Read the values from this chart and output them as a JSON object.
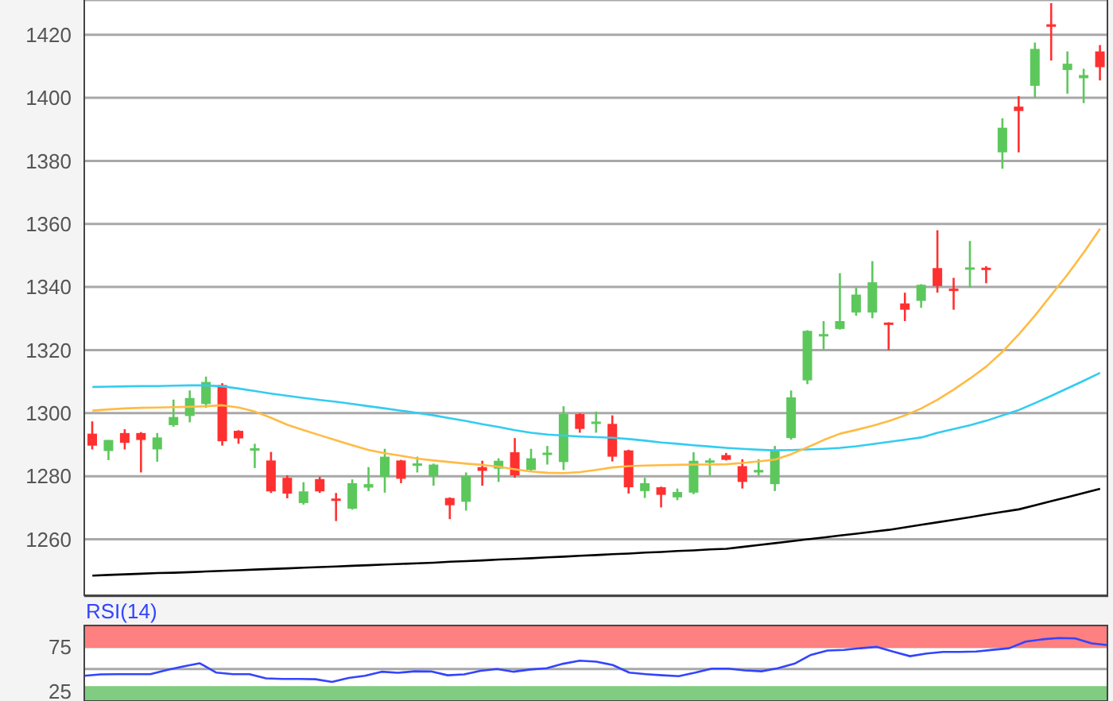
{
  "chart_data": [
    {
      "type": "candlestick",
      "categories": [
        null,
        null,
        null,
        null,
        null,
        null,
        null,
        null,
        null,
        null,
        null,
        null,
        null,
        null,
        null,
        null,
        null,
        null,
        null,
        null,
        null,
        null,
        null,
        null,
        null,
        null,
        null,
        null,
        null,
        null,
        null,
        null,
        null,
        null,
        null,
        null,
        null,
        null,
        null,
        null,
        null,
        null,
        null,
        null,
        null,
        null,
        null,
        null,
        null,
        null,
        null,
        null,
        null,
        null,
        null,
        null,
        null,
        null,
        null,
        null,
        null,
        null,
        null
      ],
      "ohlc": [
        [
          1293.5,
          1297.4,
          1288.5,
          1289.7
        ],
        [
          1288,
          1291.5,
          1285.1,
          1291.5
        ],
        [
          1293.7,
          1294.9,
          1288.5,
          1290.6
        ],
        [
          1293.7,
          1294,
          1281.2,
          1291.5
        ],
        [
          1288.5,
          1293.7,
          1284.6,
          1292.3
        ],
        [
          1296.2,
          1304.3,
          1295.7,
          1298.8
        ],
        [
          1299.1,
          1307.2,
          1297.1,
          1304.8
        ],
        [
          1302.9,
          1311.6,
          1301.7,
          1309.9
        ],
        [
          1308.9,
          1309.5,
          1289.7,
          1291.1
        ],
        [
          1294.4,
          1294.6,
          1290.3,
          1292
        ],
        [
          1288.3,
          1290.3,
          1282.6,
          1288.7
        ],
        [
          1285,
          1287.7,
          1274.7,
          1275.2
        ],
        [
          1279.5,
          1280.3,
          1273,
          1274.5
        ],
        [
          1271.5,
          1278.1,
          1271,
          1275.2
        ],
        [
          1279.1,
          1279.8,
          1274.7,
          1275.2
        ],
        [
          1272.8,
          1274.7,
          1265.8,
          1272.3
        ],
        [
          1269.7,
          1279,
          1269.4,
          1277.8
        ],
        [
          1276.4,
          1282.9,
          1275.3,
          1277.5
        ],
        [
          1279.8,
          1288.7,
          1274.8,
          1286.2
        ],
        [
          1285,
          1285.2,
          1277.8,
          1279.2
        ],
        [
          1283.5,
          1286.2,
          1281.2,
          1283.9
        ],
        [
          1280,
          1284,
          1277,
          1283.7
        ],
        [
          1273.1,
          1273.3,
          1266.4,
          1270.8
        ],
        [
          1271.9,
          1281.2,
          1269.1,
          1280
        ],
        [
          1282.9,
          1284.9,
          1277,
          1281.7
        ],
        [
          1282.4,
          1285.7,
          1278.2,
          1284.9
        ],
        [
          1287.6,
          1292.1,
          1279.5,
          1280.3
        ],
        [
          1282,
          1288.7,
          1281.7,
          1285.7
        ],
        [
          1286.9,
          1289.6,
          1283.7,
          1287.3
        ],
        [
          1284.5,
          1302.2,
          1282,
          1299.7
        ],
        [
          1299.7,
          1300,
          1293.8,
          1295
        ],
        [
          1296.6,
          1300.5,
          1293.8,
          1297.3
        ],
        [
          1296.6,
          1299.3,
          1284.7,
          1286.2
        ],
        [
          1288.2,
          1288.4,
          1274.5,
          1276.5
        ],
        [
          1275.3,
          1279.5,
          1273.1,
          1277.8
        ],
        [
          1276.5,
          1276.7,
          1270.1,
          1274.1
        ],
        [
          1273.3,
          1276.1,
          1272.4,
          1275
        ],
        [
          1274.8,
          1287.6,
          1274.3,
          1284.9
        ],
        [
          1284.4,
          1285.7,
          1280.3,
          1284.9
        ],
        [
          1286.7,
          1287.4,
          1285,
          1285.2
        ],
        [
          1283.2,
          1285.4,
          1276.1,
          1278.2
        ],
        [
          1281.2,
          1285.4,
          1280.3,
          1282
        ],
        [
          1277.5,
          1289.6,
          1275.3,
          1288.2
        ],
        [
          1292.1,
          1307.2,
          1291.6,
          1305
        ],
        [
          1310.4,
          1326.3,
          1309.2,
          1326.1
        ],
        [
          1324.4,
          1329.2,
          1320,
          1325
        ],
        [
          1326.7,
          1344.4,
          1326.5,
          1329.2
        ],
        [
          1331.9,
          1339.8,
          1330.9,
          1337.6
        ],
        [
          1331.9,
          1348.2,
          1330.1,
          1341.5
        ],
        [
          1328.6,
          1328.8,
          1320,
          1328.1
        ],
        [
          1334.8,
          1338.2,
          1329.2,
          1332.8
        ],
        [
          1335.6,
          1340.9,
          1333.4,
          1340.7
        ],
        [
          1346,
          1358,
          1338.2,
          1340.3
        ],
        [
          1339.2,
          1342.9,
          1332.8,
          1339
        ],
        [
          1345.7,
          1354.6,
          1339.8,
          1346
        ],
        [
          1346,
          1346.6,
          1341.2,
          1345.5
        ],
        [
          1382.7,
          1393.5,
          1377.5,
          1390.5
        ],
        [
          1397.2,
          1400.5,
          1382.7,
          1395.8
        ],
        [
          1403.8,
          1417.5,
          1400,
          1415.5
        ],
        [
          1423.3,
          1430,
          1411.8,
          1422.5
        ],
        [
          1408.8,
          1414.7,
          1401.3,
          1410.8
        ],
        [
          1406.2,
          1409.2,
          1398.3,
          1407.2
        ],
        [
          1414.7,
          1416.7,
          1405.5,
          1409.7
        ]
      ],
      "colors": [
        "#ff3030",
        "#5cc85c",
        "#ff3030",
        "#ff3030",
        "#5cc85c",
        "#5cc85c",
        "#5cc85c",
        "#5cc85c",
        "#ff3030",
        "#ff3030",
        "#5cc85c",
        "#ff3030",
        "#ff3030",
        "#5cc85c",
        "#ff3030",
        "#ff3030",
        "#5cc85c",
        "#5cc85c",
        "#5cc85c",
        "#ff3030",
        "#5cc85c",
        "#5cc85c",
        "#ff3030",
        "#5cc85c",
        "#ff3030",
        "#5cc85c",
        "#ff3030",
        "#5cc85c",
        "#5cc85c",
        "#5cc85c",
        "#ff3030",
        "#5cc85c",
        "#ff3030",
        "#ff3030",
        "#5cc85c",
        "#ff3030",
        "#5cc85c",
        "#5cc85c",
        "#5cc85c",
        "#ff3030",
        "#ff3030",
        "#5cc85c",
        "#5cc85c",
        "#5cc85c",
        "#5cc85c",
        "#5cc85c",
        "#5cc85c",
        "#5cc85c",
        "#5cc85c",
        "#ff3030",
        "#ff3030",
        "#5cc85c",
        "#ff3030",
        "#ff3030",
        "#5cc85c",
        "#ff3030",
        "#5cc85c",
        "#ff3030",
        "#5cc85c",
        "#ff3030",
        "#5cc85c",
        "#5cc85c",
        "#ff3030"
      ],
      "series": [
        {
          "type": "line",
          "color": "#000000",
          "values": [
            1248.5,
            1248.7,
            1248.9,
            1249.1,
            1249.3,
            1249.4,
            1249.6,
            1249.8,
            1250,
            1250.2,
            1250.4,
            1250.6,
            1250.8,
            1251,
            1251.2,
            1251.4,
            1251.6,
            1251.8,
            1252,
            1252.2,
            1252.4,
            1252.6,
            1252.9,
            1253.1,
            1253.3,
            1253.6,
            1253.8,
            1254,
            1254.3,
            1254.5,
            1254.8,
            1255,
            1255.3,
            1255.5,
            1255.8,
            1256,
            1256.3,
            1256.5,
            1256.8,
            1257,
            1257.6,
            1258.2,
            1258.8,
            1259.4,
            1260,
            1260.6,
            1261.2,
            1261.8,
            1262.4,
            1263,
            1263.8,
            1264.6,
            1265.4,
            1266.2,
            1267,
            1267.9,
            1268.7,
            1269.5,
            1270.8,
            1272.1,
            1273.4,
            1274.7,
            1276
          ]
        },
        {
          "type": "line",
          "color": "#33ccf0",
          "values": [
            1308.3,
            1308.4,
            1308.5,
            1308.6,
            1308.6,
            1308.7,
            1308.8,
            1308.8,
            1308.5,
            1307.8,
            1307,
            1306.2,
            1305.5,
            1304.8,
            1304.2,
            1303.6,
            1302.9,
            1302.2,
            1301.5,
            1300.8,
            1300.1,
            1299.3,
            1298.4,
            1297.5,
            1296.5,
            1295.6,
            1294.6,
            1293.8,
            1293.2,
            1292.9,
            1292.6,
            1292.4,
            1292.2,
            1291.8,
            1291.3,
            1290.7,
            1290.3,
            1289.8,
            1289.4,
            1289,
            1288.7,
            1288.4,
            1288.2,
            1288.3,
            1288.5,
            1288.7,
            1289,
            1289.5,
            1290.2,
            1290.9,
            1291.6,
            1292.3,
            1293.8,
            1295,
            1296.2,
            1297.6,
            1299.3,
            1301,
            1303.2,
            1305.5,
            1307.9,
            1310.3,
            1312.8
          ]
        },
        {
          "type": "line",
          "color": "#ffbb44",
          "values": [
            1300.8,
            1301.2,
            1301.5,
            1301.7,
            1301.8,
            1301.9,
            1302,
            1302.2,
            1302.5,
            1301.8,
            1300.5,
            1298.5,
            1296.3,
            1294.6,
            1293,
            1291.4,
            1289.8,
            1288.3,
            1287.3,
            1286.5,
            1285.6,
            1285,
            1284.5,
            1284,
            1283.6,
            1283,
            1282.2,
            1281.5,
            1281.1,
            1281,
            1281.3,
            1282,
            1282.8,
            1283.2,
            1283.4,
            1283.5,
            1283.6,
            1283.7,
            1283.7,
            1283.8,
            1284.2,
            1284.7,
            1285.3,
            1287,
            1289.2,
            1291.5,
            1293.5,
            1294.7,
            1296,
            1297.5,
            1299.3,
            1301.5,
            1304.3,
            1307.5,
            1311,
            1314.8,
            1319.5,
            1325,
            1331,
            1337.5,
            1344,
            1351,
            1358.5
          ]
        }
      ],
      "ylim": [
        1242,
        1431
      ],
      "yticks": [
        1260,
        1280,
        1300,
        1320,
        1340,
        1360,
        1380,
        1400,
        1420
      ],
      "grid": "y",
      "tick_labels": "y"
    },
    {
      "type": "line",
      "title": "RSI(14)",
      "categories": [
        null,
        null,
        null,
        null,
        null,
        null,
        null,
        null,
        null,
        null,
        null,
        null,
        null,
        null,
        null,
        null,
        null,
        null,
        null,
        null,
        null,
        null,
        null,
        null,
        null,
        null,
        null,
        null,
        null,
        null,
        null,
        null,
        null,
        null,
        null,
        null,
        null,
        null,
        null,
        null,
        null,
        null,
        null,
        null,
        null,
        null,
        null,
        null,
        null,
        null,
        null,
        null,
        null,
        null,
        null,
        null,
        null,
        null,
        null,
        null,
        null,
        null,
        null
      ],
      "series": [
        {
          "color": "#3344ff",
          "values": [
            42.5,
            44,
            44.3,
            44.3,
            44.3,
            49,
            53,
            56.5,
            46,
            44.3,
            44.3,
            39.5,
            38.8,
            38.8,
            38.5,
            35.5,
            40,
            42.5,
            47,
            45.8,
            47.5,
            47.3,
            43,
            44,
            48,
            50,
            47,
            49.5,
            51,
            56,
            59.5,
            58.4,
            54.5,
            46,
            44.3,
            43,
            42,
            46,
            50.5,
            50.5,
            48.5,
            47.5,
            51,
            56,
            66,
            70.9,
            71.5,
            73.5,
            75,
            69.5,
            64.5,
            67.5,
            69.3,
            69.3,
            69.7,
            71.7,
            73.5,
            81,
            83.5,
            85,
            84.5,
            79,
            77
          ]
        }
      ],
      "ylim": [
        14,
        100
      ],
      "yticks": [
        25,
        {
          "value": 50,
          "label": null
        },
        75
      ],
      "grid": "y",
      "tick_labels": "y",
      "bands": [
        {
          "axis": "y",
          "from": 75,
          "to": 100,
          "color": "#ff8080"
        },
        {
          "axis": "y",
          "from": 14,
          "to": 30,
          "color": "#80cc80"
        }
      ]
    }
  ]
}
